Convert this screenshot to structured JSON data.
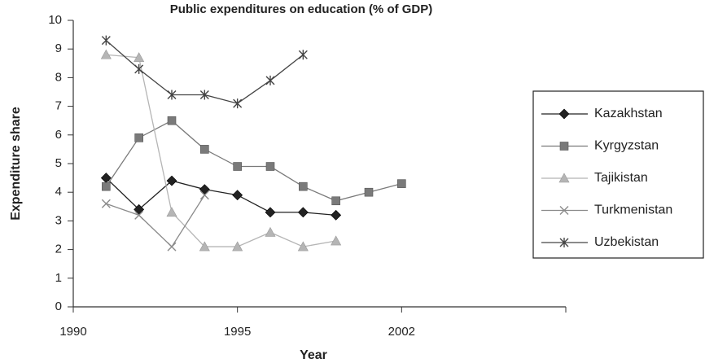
{
  "chart_data": {
    "type": "line",
    "title": "Public expenditures on education (% of GDP)",
    "x_label": "Year",
    "y_label": "Expenditure share",
    "categories": [
      "1990",
      null,
      null,
      null,
      null,
      "1995",
      null,
      null,
      null,
      null,
      "2002",
      null,
      null,
      null,
      null,
      null
    ],
    "ylim": [
      0,
      10
    ],
    "yticks": [
      0,
      1,
      2,
      3,
      4,
      5,
      6,
      7,
      8,
      9,
      10
    ],
    "grid": false,
    "legend": "right",
    "series": [
      {
        "name": "Kazakhstan",
        "color": "#222222",
        "marker": "diamond",
        "values": [
          null,
          4.5,
          3.4,
          4.4,
          4.1,
          3.9,
          3.3,
          3.3,
          3.2,
          null,
          null,
          null,
          null,
          null,
          null,
          null
        ]
      },
      {
        "name": "Kyrgyzstan",
        "color": "#7a7a7a",
        "marker": "square",
        "values": [
          null,
          4.2,
          5.9,
          6.5,
          5.5,
          4.9,
          4.9,
          4.2,
          3.7,
          4.0,
          4.3,
          null,
          null,
          null,
          null,
          null
        ]
      },
      {
        "name": "Tajikistan",
        "color": "#b5b5b5",
        "marker": "triangle",
        "values": [
          null,
          8.8,
          8.7,
          3.3,
          2.1,
          2.1,
          2.6,
          2.1,
          2.3,
          null,
          null,
          null,
          null,
          null,
          null,
          null
        ]
      },
      {
        "name": "Turkmenistan",
        "color": "#8a8a8a",
        "marker": "cross",
        "values": [
          null,
          3.6,
          3.2,
          2.1,
          3.9,
          null,
          null,
          null,
          null,
          null,
          null,
          null,
          null,
          null,
          null,
          null
        ]
      },
      {
        "name": "Uzbekistan",
        "color": "#444444",
        "marker": "asterisk",
        "values": [
          null,
          9.3,
          8.3,
          7.4,
          7.4,
          7.1,
          7.9,
          8.8,
          null,
          null,
          null,
          null,
          null,
          null,
          null,
          null
        ]
      }
    ]
  }
}
